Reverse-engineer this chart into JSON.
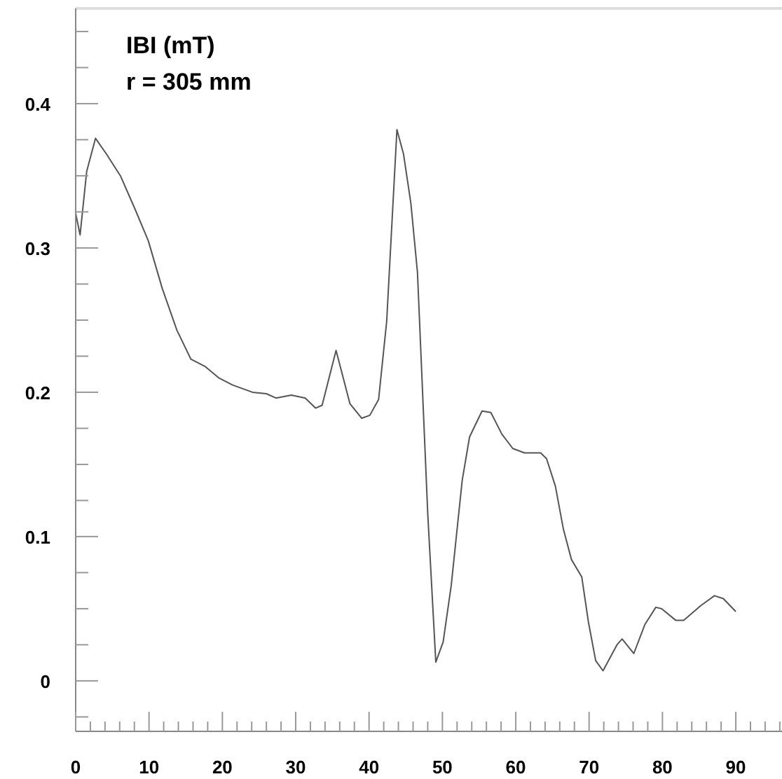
{
  "chart_data": {
    "type": "line",
    "title": "IBI (mT)",
    "subtitle": "r = 305 mm",
    "x": [
      0,
      0.6,
      1.5,
      2.7,
      4.2,
      6.1,
      8,
      9.9,
      11.8,
      13.8,
      15.7,
      17.6,
      19.5,
      21.4,
      24.1,
      26,
      27.3,
      29.4,
      31.3,
      32.7,
      33.6,
      35.5,
      37.4,
      39,
      40.1,
      41.3,
      42.4,
      43.8,
      44.7,
      45.7,
      46.6,
      48,
      49.1,
      50.1,
      51.2,
      52.7,
      53.7,
      55.4,
      56.6,
      58.1,
      59.6,
      61.2,
      63.4,
      64.2,
      65.4,
      66.5,
      67.6,
      69,
      69.9,
      70.9,
      71.9,
      73.8,
      74.5,
      76.1,
      77.6,
      79.1,
      79.9,
      81.8,
      82.9,
      85.2,
      87.1,
      88.3,
      90
    ],
    "series": [
      {
        "color": "#555555",
        "values": [
          0.324,
          0.309,
          0.353,
          0.376,
          0.365,
          0.35,
          0.328,
          0.305,
          0.272,
          0.243,
          0.223,
          0.218,
          0.21,
          0.205,
          0.2,
          0.199,
          0.196,
          0.198,
          0.196,
          0.189,
          0.191,
          0.229,
          0.192,
          0.182,
          0.184,
          0.195,
          0.249,
          0.382,
          0.365,
          0.331,
          0.283,
          0.116,
          0.013,
          0.027,
          0.066,
          0.139,
          0.169,
          0.187,
          0.186,
          0.171,
          0.161,
          0.158,
          0.158,
          0.154,
          0.135,
          0.105,
          0.084,
          0.072,
          0.041,
          0.014,
          0.007,
          0.025,
          0.029,
          0.019,
          0.039,
          0.051,
          0.05,
          0.042,
          0.042,
          0.052,
          0.059,
          0.057,
          0.048
        ]
      }
    ],
    "xlim": [
      0,
      96.3
    ],
    "ylim": [
      -0.035,
      0.466
    ],
    "xticks": [
      0,
      {
        "value": 2,
        "label": null
      },
      {
        "value": 4,
        "label": null
      },
      {
        "value": 6,
        "label": null
      },
      {
        "value": 8,
        "label": null
      },
      10,
      {
        "value": 12,
        "label": null
      },
      {
        "value": 14,
        "label": null
      },
      {
        "value": 16,
        "label": null
      },
      {
        "value": 18,
        "label": null
      },
      20,
      {
        "value": 22,
        "label": null
      },
      {
        "value": 24,
        "label": null
      },
      {
        "value": 26,
        "label": null
      },
      {
        "value": 28,
        "label": null
      },
      30,
      {
        "value": 32,
        "label": null
      },
      {
        "value": 34,
        "label": null
      },
      {
        "value": 36,
        "label": null
      },
      {
        "value": 38,
        "label": null
      },
      40,
      {
        "value": 42,
        "label": null
      },
      {
        "value": 44,
        "label": null
      },
      {
        "value": 46,
        "label": null
      },
      {
        "value": 48,
        "label": null
      },
      50,
      {
        "value": 52,
        "label": null
      },
      {
        "value": 54,
        "label": null
      },
      {
        "value": 56,
        "label": null
      },
      {
        "value": 58,
        "label": null
      },
      60,
      {
        "value": 62,
        "label": null
      },
      {
        "value": 64,
        "label": null
      },
      {
        "value": 66,
        "label": null
      },
      {
        "value": 68,
        "label": null
      },
      70,
      {
        "value": 72,
        "label": null
      },
      {
        "value": 74,
        "label": null
      },
      {
        "value": 76,
        "label": null
      },
      {
        "value": 78,
        "label": null
      },
      80,
      {
        "value": 82,
        "label": null
      },
      {
        "value": 84,
        "label": null
      },
      {
        "value": 86,
        "label": null
      },
      {
        "value": 88,
        "label": null
      },
      90,
      {
        "value": 92,
        "label": null
      },
      {
        "value": 94,
        "label": null
      },
      {
        "value": 96,
        "label": null
      }
    ],
    "yticks": [
      {
        "value": -0.025,
        "label": null
      },
      0,
      {
        "value": 0.025,
        "label": null
      },
      {
        "value": 0.05,
        "label": null
      },
      {
        "value": 0.075,
        "label": null
      },
      0.1,
      {
        "value": 0.125,
        "label": null
      },
      {
        "value": 0.15,
        "label": null
      },
      {
        "value": 0.175,
        "label": null
      },
      0.2,
      {
        "value": 0.225,
        "label": null
      },
      {
        "value": 0.25,
        "label": null
      },
      {
        "value": 0.275,
        "label": null
      },
      0.3,
      {
        "value": 0.325,
        "label": null
      },
      {
        "value": 0.35,
        "label": null
      },
      {
        "value": 0.375,
        "label": null
      },
      0.4,
      {
        "value": 0.425,
        "label": null
      },
      {
        "value": 0.45,
        "label": null
      }
    ],
    "grid": false,
    "legend": false,
    "marker": "none",
    "line_style": "solid"
  }
}
